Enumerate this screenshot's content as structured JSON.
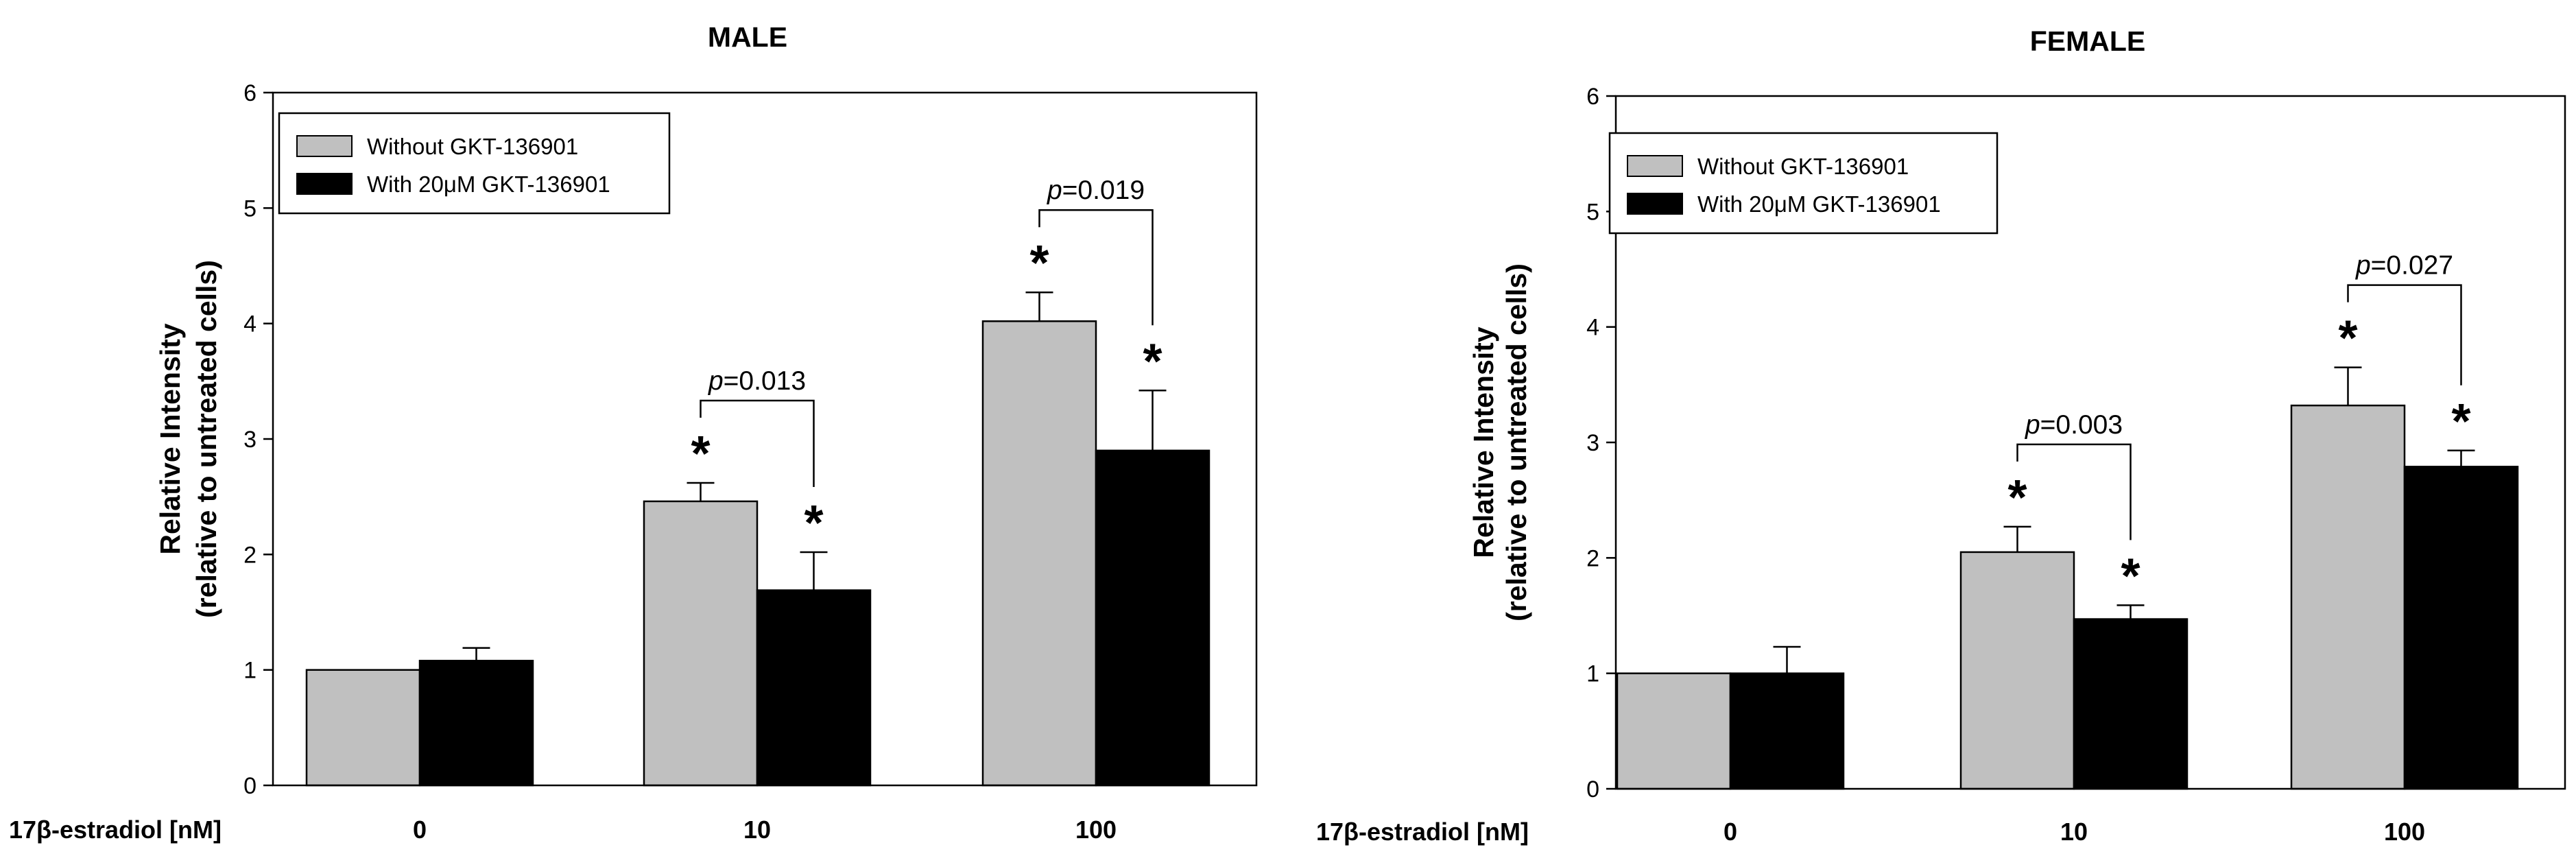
{
  "chart_data": [
    {
      "type": "bar",
      "title": "MALE",
      "ylabel": "Relative Intensity",
      "ylabel2": "(relative to untreated cells)",
      "xcaption": "17β-estradiol [nM]",
      "categories": [
        "0",
        "10",
        "100"
      ],
      "ylim": [
        0,
        6
      ],
      "yticks": [
        "0",
        "1",
        "2",
        "3",
        "4",
        "5",
        "6"
      ],
      "legend_position": "top-left",
      "series": [
        {
          "name": "Without GKT-136901",
          "color": "#c0c0c0",
          "values": [
            1.0,
            2.46,
            4.02
          ],
          "errors": [
            0.0,
            0.16,
            0.25
          ]
        },
        {
          "name": "With 20μM GKT-136901",
          "color": "#000000",
          "values": [
            1.08,
            1.69,
            2.9
          ],
          "errors": [
            0.11,
            0.33,
            0.52
          ]
        }
      ],
      "significance": {
        "series0": [
          false,
          true,
          true
        ],
        "series1": [
          false,
          true,
          true
        ],
        "star_symbol": "*"
      },
      "comparisons": [
        {
          "category": 1,
          "p_label": "p",
          "p_value": "=0.013"
        },
        {
          "category": 2,
          "p_label": "p",
          "p_value": "=0.019"
        }
      ]
    },
    {
      "type": "bar",
      "title": "FEMALE",
      "ylabel": "Relative Intensity",
      "ylabel2": "(relative to untreated cells)",
      "xcaption": "17β-estradiol [nM]",
      "categories": [
        "0",
        "10",
        "100"
      ],
      "ylim": [
        0,
        6
      ],
      "yticks": [
        "0",
        "1",
        "2",
        "3",
        "4",
        "5",
        "6"
      ],
      "legend_position": "top-left",
      "series": [
        {
          "name": "Without GKT-136901",
          "color": "#c0c0c0",
          "values": [
            1.0,
            2.05,
            3.32
          ],
          "errors": [
            0.0,
            0.22,
            0.33
          ]
        },
        {
          "name": "With 20μM GKT-136901",
          "color": "#000000",
          "values": [
            1.0,
            1.47,
            2.79
          ],
          "errors": [
            0.23,
            0.12,
            0.14
          ]
        }
      ],
      "significance": {
        "series0": [
          false,
          true,
          true
        ],
        "series1": [
          false,
          true,
          true
        ],
        "star_symbol": "*"
      },
      "comparisons": [
        {
          "category": 1,
          "p_label": "p",
          "p_value": "=0.003"
        },
        {
          "category": 2,
          "p_label": "p",
          "p_value": "=0.027"
        }
      ]
    }
  ]
}
